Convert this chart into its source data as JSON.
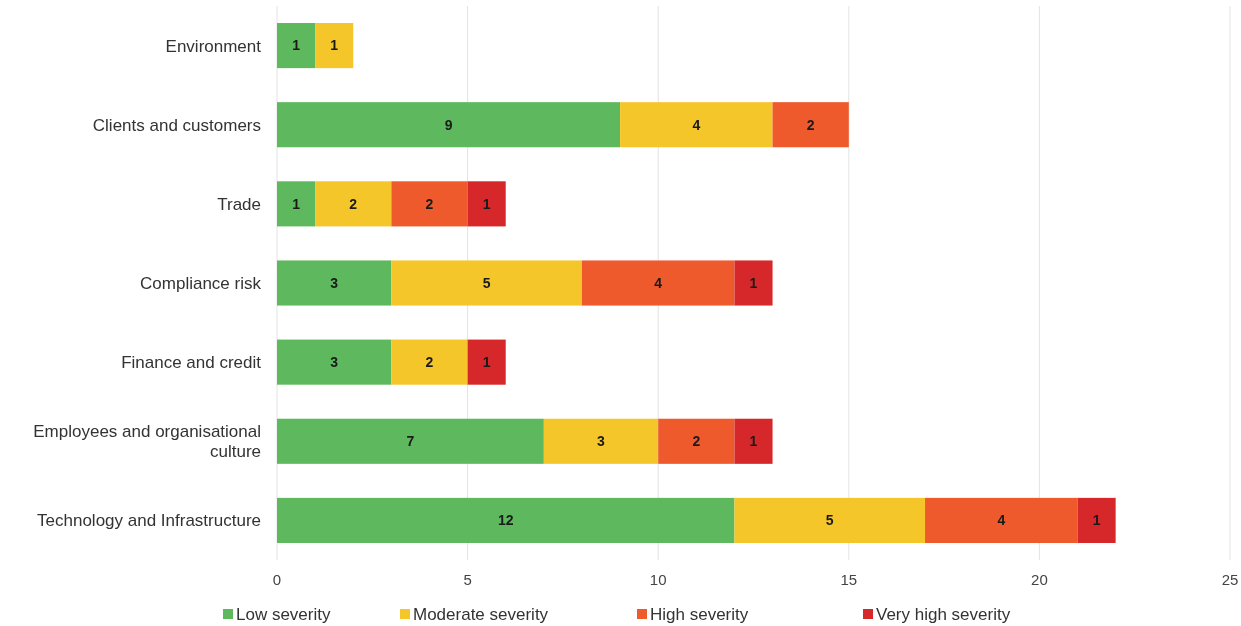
{
  "chart_data": {
    "type": "bar",
    "orientation": "horizontal",
    "stacked": true,
    "categories": [
      "Environment",
      "Clients and customers",
      "Trade",
      "Compliance risk",
      "Finance and credit",
      "Employees and organisational culture",
      "Technology and Infrastructure"
    ],
    "series": [
      {
        "name": "Low severity",
        "color": "#5eb95e",
        "values": [
          1,
          9,
          1,
          3,
          3,
          7,
          12
        ]
      },
      {
        "name": "Moderate severity",
        "color": "#f4c62a",
        "values": [
          1,
          4,
          2,
          5,
          2,
          3,
          5
        ]
      },
      {
        "name": "High severity",
        "color": "#ee5a2c",
        "values": [
          null,
          2,
          2,
          4,
          null,
          2,
          4
        ]
      },
      {
        "name": "Very high severity",
        "color": "#d6282b",
        "values": [
          null,
          null,
          1,
          1,
          1,
          1,
          1
        ]
      }
    ],
    "xlim": [
      0,
      25
    ],
    "xticks": [
      0,
      5,
      10,
      15,
      20,
      25
    ],
    "grid": "x",
    "legend": "bottom",
    "data_labels": true
  }
}
